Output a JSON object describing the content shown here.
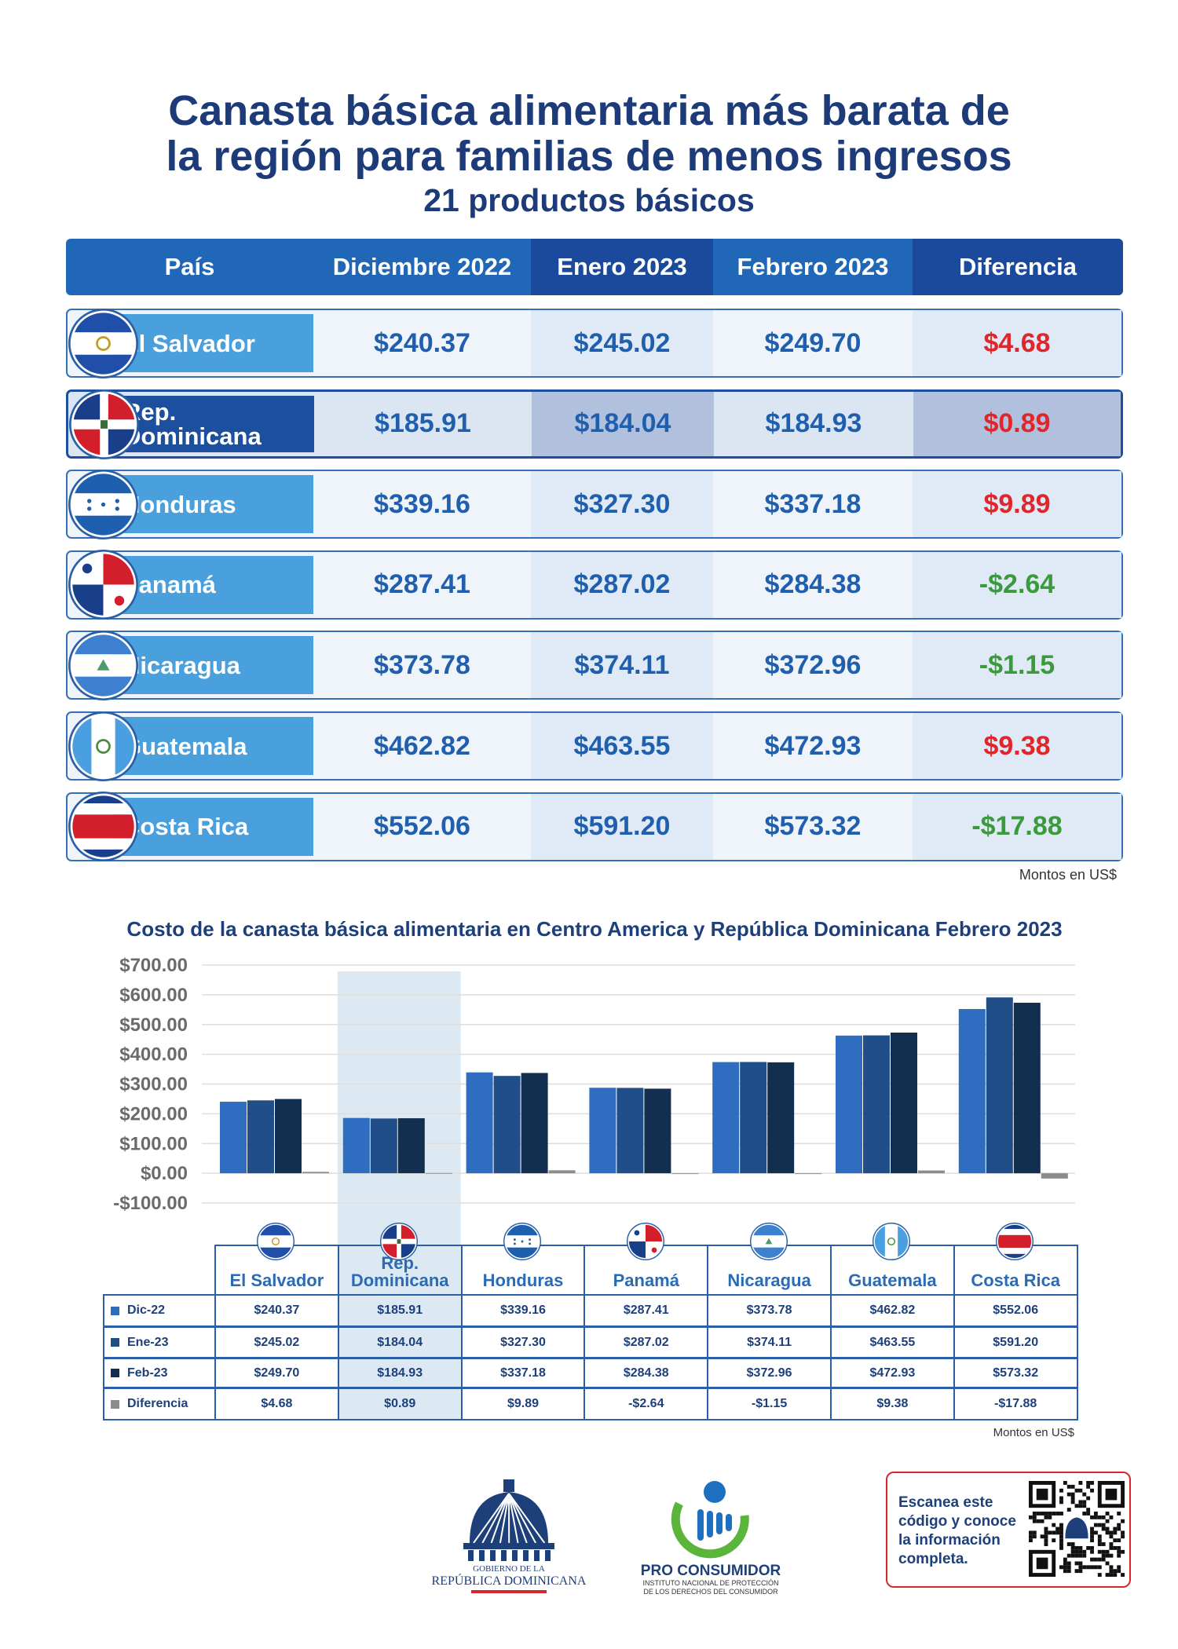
{
  "header": {
    "title": [
      "Canasta básica alimentaria más barata de",
      "la región para familias de menos ingresos"
    ],
    "subtitle": "21 productos básicos"
  },
  "table": {
    "columns": [
      "País",
      "Diciembre 2022",
      "Enero 2023",
      "Febrero 2023",
      "Diferencia"
    ],
    "rows": [
      [
        "El Salvador",
        "$240.37",
        "$245.02",
        "$249.70",
        "$4.68"
      ],
      [
        "Rep. Dominicana",
        "$185.91",
        "$184.04",
        "$184.93",
        "$0.89"
      ],
      [
        "Honduras",
        "$339.16",
        "$327.30",
        "$337.18",
        "$9.89"
      ],
      [
        "Panamá",
        "$287.41",
        "$287.02",
        "$284.38",
        "-$2.64"
      ],
      [
        "Nicaragua",
        "$373.78",
        "$374.11",
        "$372.96",
        "-$1.15"
      ],
      [
        "Guatemala",
        "$462.82",
        "$463.55",
        "$472.93",
        "$9.38"
      ],
      [
        "Costa Rica",
        "$552.06",
        "$591.20",
        "$573.32",
        "-$17.88"
      ]
    ],
    "note": "Montos en US$"
  },
  "chart_data": {
    "type": "bar",
    "title": "Costo de la canasta básica alimentaria en Centro America y República Dominicana Febrero 2023",
    "categories": [
      "El Salvador",
      "Rep. Dominicana",
      "Honduras",
      "Panamá",
      "Nicaragua",
      "Guatemala",
      "Costa Rica"
    ],
    "series": [
      {
        "name": "Dic-22",
        "color": "#2e6dc0",
        "values": [
          240.37,
          185.91,
          339.16,
          287.41,
          373.78,
          462.82,
          552.06
        ],
        "value_labels": [
          "$240.37",
          "$185.91",
          "$339.16",
          "$287.41",
          "$373.78",
          "$462.82",
          "$552.06"
        ]
      },
      {
        "name": "Ene-23",
        "color": "#1f4e89",
        "values": [
          245.02,
          184.04,
          327.3,
          287.02,
          374.11,
          463.55,
          591.2
        ],
        "value_labels": [
          "$245.02",
          "$184.04",
          "$327.30",
          "$287.02",
          "$374.11",
          "$463.55",
          "$591.20"
        ]
      },
      {
        "name": "Feb-23",
        "color": "#132f4f",
        "values": [
          249.7,
          184.93,
          337.18,
          284.38,
          372.96,
          472.93,
          573.32
        ],
        "value_labels": [
          "$249.70",
          "$184.93",
          "$337.18",
          "$284.38",
          "$372.96",
          "$472.93",
          "$573.32"
        ]
      },
      {
        "name": "Diferencia",
        "color": "#8c8c8c",
        "values": [
          4.68,
          0.89,
          9.89,
          -2.64,
          -1.15,
          9.38,
          -17.88
        ],
        "value_labels": [
          "$4.68",
          "$0.89",
          "$9.89",
          "-$2.64",
          "-$1.15",
          "$9.38",
          "-$17.88"
        ]
      }
    ],
    "ylim": [
      -100,
      700
    ],
    "yticks": [
      {
        "value": -100,
        "label": "-$100.00"
      },
      {
        "value": 0,
        "label": "$0.00"
      },
      {
        "value": 100,
        "label": "$100.00"
      },
      {
        "value": 200,
        "label": "$200.00"
      },
      {
        "value": 300,
        "label": "$300.00"
      },
      {
        "value": 400,
        "label": "$400.00"
      },
      {
        "value": 500,
        "label": "$500.00"
      },
      {
        "value": 600,
        "label": "$600.00"
      },
      {
        "value": 700,
        "label": "$700.00"
      }
    ],
    "grid": true,
    "note": "Montos en US$"
  },
  "footer": {
    "gov_line1": "GOBIERNO DE LA",
    "gov_line2": "REPÚBLICA DOMINICANA",
    "org_name": "PRO CONSUMIDOR",
    "org_sub": [
      "INSTITUTO NACIONAL DE PROTECCIÓN",
      "DE LOS DERECHOS DEL CONSUMIDOR"
    ],
    "qr_text": "Escanea este código y conoce la información completa."
  }
}
